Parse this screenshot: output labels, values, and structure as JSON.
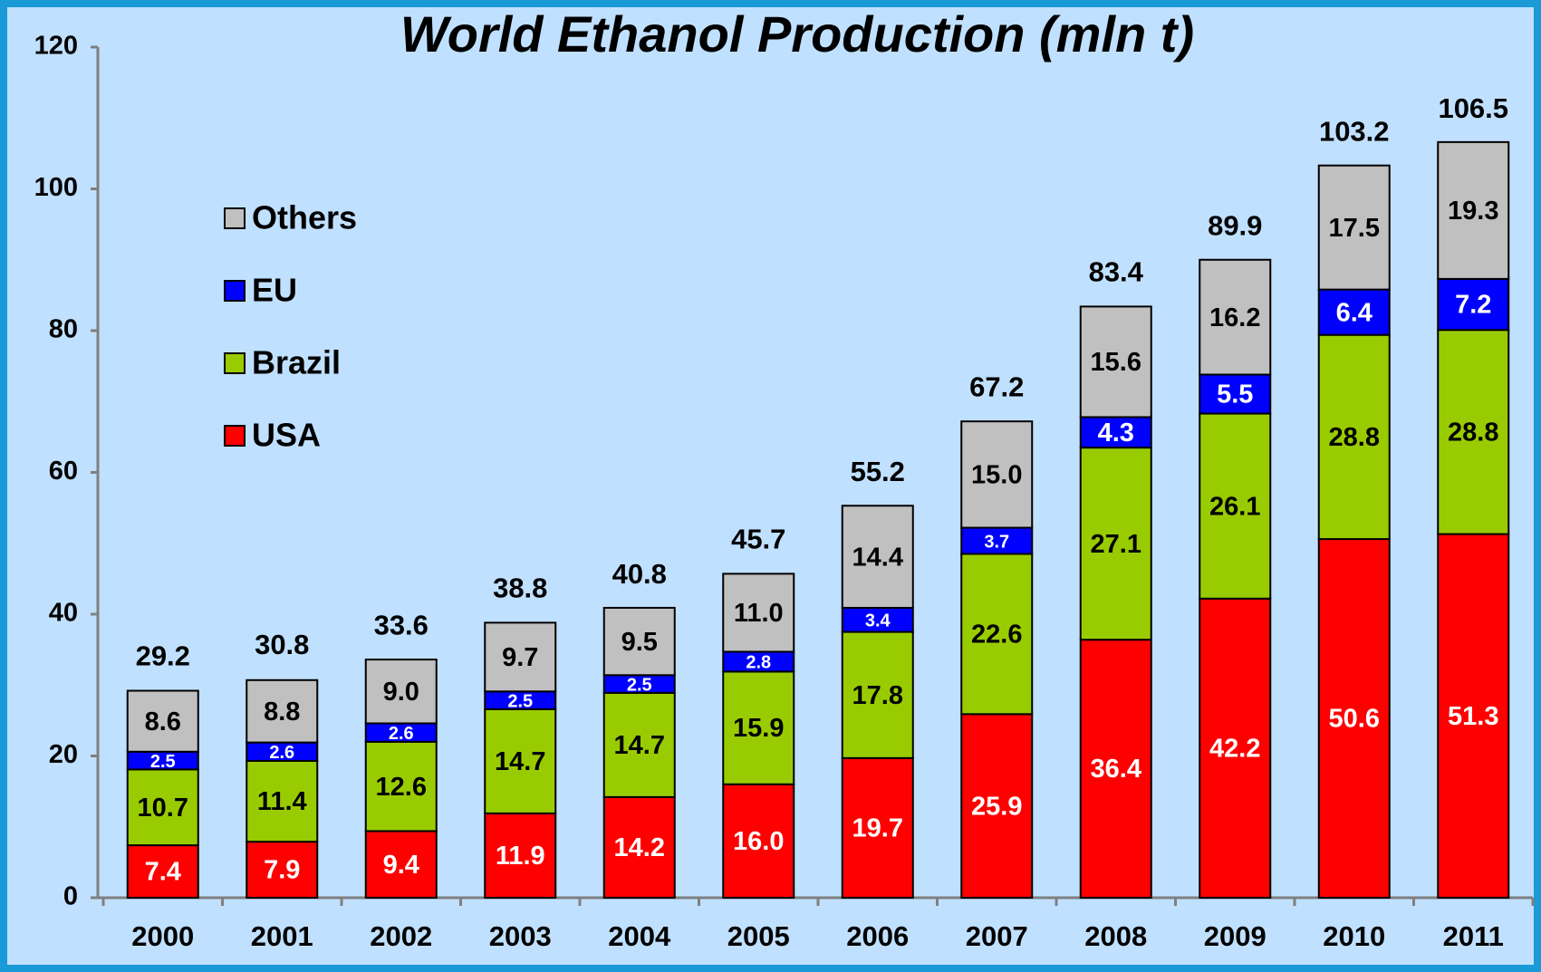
{
  "chart_data": {
    "type": "stacked_bar",
    "title": "World Ethanol Production (mln t)",
    "categories": [
      "2000",
      "2001",
      "2002",
      "2003",
      "2004",
      "2005",
      "2006",
      "2007",
      "2008",
      "2009",
      "2010",
      "2011"
    ],
    "series": [
      {
        "name": "USA",
        "color": "#ff0000",
        "label_color": "#ffffff",
        "values": [
          7.4,
          7.9,
          9.4,
          11.9,
          14.2,
          16.0,
          19.7,
          25.9,
          36.4,
          42.2,
          50.6,
          51.3
        ],
        "value_labels": [
          "7.4",
          "7.9",
          "9.4",
          "11.9",
          "14.2",
          "16.0",
          "19.7",
          "25.9",
          "36.4",
          "42.2",
          "50.6",
          "51.3"
        ]
      },
      {
        "name": "Brazil",
        "color": "#99cc00",
        "label_color": "#000000",
        "values": [
          10.7,
          11.4,
          12.6,
          14.7,
          14.7,
          15.9,
          17.8,
          22.6,
          27.1,
          26.1,
          28.8,
          28.8
        ],
        "value_labels": [
          "10.7",
          "11.4",
          "12.6",
          "14.7",
          "14.7",
          "15.9",
          "17.8",
          "22.6",
          "27.1",
          "26.1",
          "28.8",
          "28.8"
        ]
      },
      {
        "name": "EU",
        "color": "#0000ff",
        "label_color": "#ffffff",
        "values": [
          2.5,
          2.6,
          2.6,
          2.5,
          2.5,
          2.8,
          3.4,
          3.7,
          4.3,
          5.5,
          6.4,
          7.2
        ],
        "value_labels": [
          "2.5",
          "2.6",
          "2.6",
          "2.5",
          "2.5",
          "2.8",
          "3.4",
          "3.7",
          "4.3",
          "5.5",
          "6.4",
          "7.2"
        ]
      },
      {
        "name": "Others",
        "color": "#c0c0c0",
        "label_color": "#000000",
        "values": [
          8.6,
          8.8,
          9.0,
          9.7,
          9.5,
          11.0,
          14.4,
          15.0,
          15.6,
          16.2,
          17.5,
          19.3
        ],
        "value_labels": [
          "8.6",
          "8.8",
          "9.0",
          "9.7",
          "9.5",
          "11.0",
          "14.4",
          "15.0",
          "15.6",
          "16.2",
          "17.5",
          "19.3"
        ]
      }
    ],
    "totals": [
      29.2,
      30.8,
      33.6,
      38.8,
      40.8,
      45.7,
      55.2,
      67.2,
      83.4,
      89.9,
      103.2,
      106.5
    ],
    "ylim": [
      0,
      120
    ],
    "yticks": [
      0,
      20,
      40,
      60,
      80,
      100,
      120
    ],
    "legend": "upper left"
  }
}
